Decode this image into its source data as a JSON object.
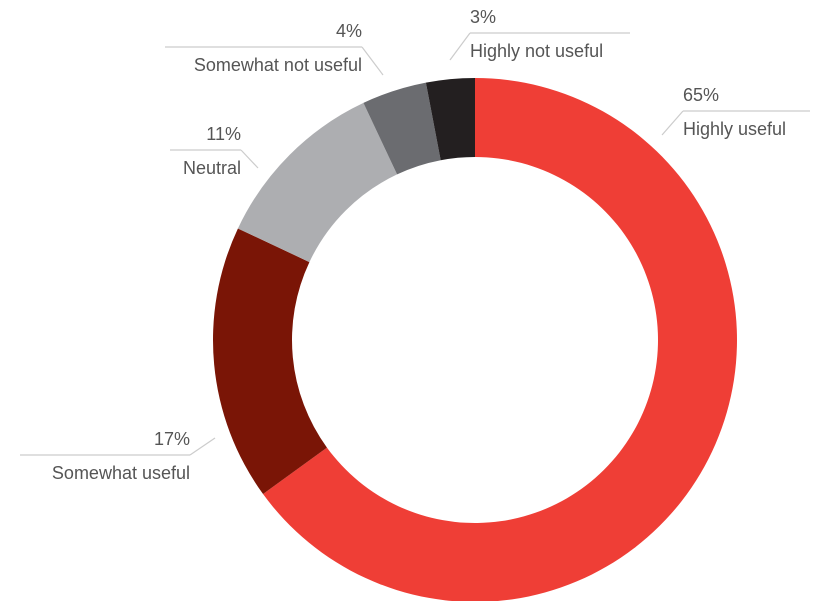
{
  "chart_data": {
    "type": "donut",
    "categories": [
      "Highly useful",
      "Somewhat useful",
      "Neutral",
      "Somewhat not useful",
      "Highly not useful"
    ],
    "values": [
      65,
      17,
      11,
      4,
      3
    ],
    "value_labels": [
      "65%",
      "17%",
      "11%",
      "4%",
      "3%"
    ],
    "colors": [
      "#ef3e36",
      "#7a1506",
      "#adaeb1",
      "#6b6c70",
      "#231f20"
    ]
  }
}
